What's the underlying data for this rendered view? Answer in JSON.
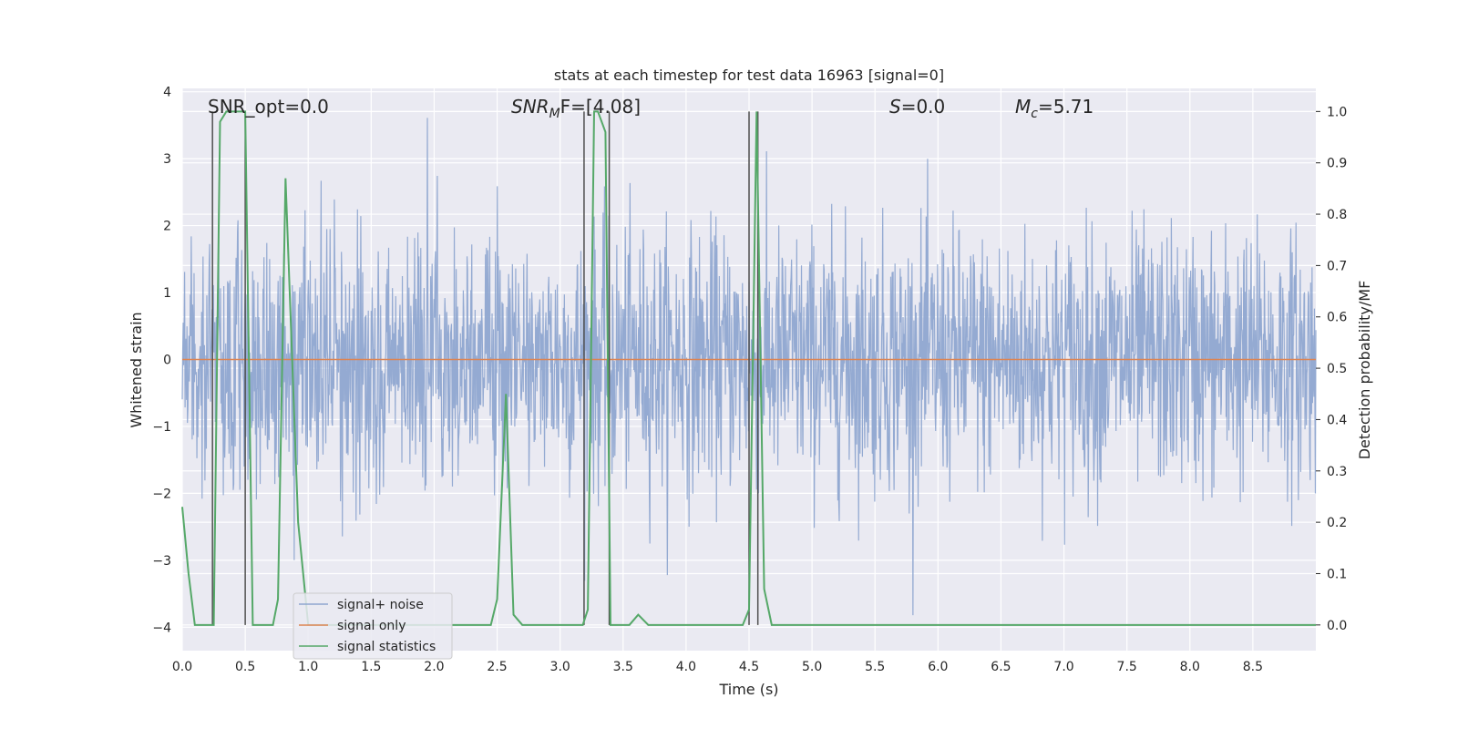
{
  "chart_data": {
    "type": "line",
    "title": "stats at each timestep for test data 16963 [signal=0]",
    "xlabel": "Time (s)",
    "ylabel": "Whitened strain",
    "ylabel_right": "Detection probability/MF",
    "xlim": [
      0,
      9.0
    ],
    "ylim": [
      -4.35,
      4.05
    ],
    "ylim_right": [
      -0.05,
      1.045
    ],
    "x_ticks": [
      "0.0",
      "0.5",
      "1.0",
      "1.5",
      "2.0",
      "2.5",
      "3.0",
      "3.5",
      "4.0",
      "4.5",
      "5.0",
      "5.5",
      "6.0",
      "6.5",
      "7.0",
      "7.5",
      "8.0",
      "8.5"
    ],
    "y_ticks": [
      "−4",
      "−3",
      "−2",
      "−1",
      "0",
      "1",
      "2",
      "3",
      "4"
    ],
    "y_ticks_right": [
      "0.0",
      "0.1",
      "0.2",
      "0.3",
      "0.4",
      "0.5",
      "0.6",
      "0.7",
      "0.8",
      "0.9",
      "1.0"
    ],
    "grid": true,
    "legend_position": "lower-left",
    "annotations": {
      "snr_opt": "SNR_opt=0.0",
      "snr_mf_main": "SNR",
      "snr_mf_sub": "M",
      "snr_mf_tail": "F=[4.08]",
      "s_main": "S",
      "s_tail": "=0.0",
      "mc_main": "M",
      "mc_sub": "c",
      "mc_tail": "=5.71"
    },
    "series": [
      {
        "name": "signal+ noise",
        "color": "#8fa6d0",
        "kind": "noise",
        "typical_range": [
          -1.7,
          1.7
        ],
        "extreme_range": [
          -4.0,
          3.7
        ]
      },
      {
        "name": "signal only",
        "color": "#dd8452",
        "x": [
          0,
          9.0
        ],
        "y": [
          0,
          0
        ]
      },
      {
        "name": "signal statistics",
        "color": "#55a868",
        "axis": "right",
        "x": [
          0.0,
          0.05,
          0.1,
          0.25,
          0.3,
          0.35,
          0.42,
          0.5,
          0.56,
          0.62,
          0.72,
          0.76,
          0.82,
          0.92,
          1.0,
          2.45,
          2.5,
          2.57,
          2.63,
          2.7,
          3.18,
          3.22,
          3.27,
          3.3,
          3.36,
          3.4,
          3.55,
          3.62,
          3.7,
          3.78,
          4.45,
          4.5,
          4.56,
          4.62,
          4.68,
          9.0
        ],
        "y": [
          0.23,
          0.1,
          0.0,
          0.0,
          0.98,
          1.0,
          1.0,
          1.0,
          0.0,
          0.0,
          0.0,
          0.05,
          0.87,
          0.2,
          0.0,
          0.0,
          0.05,
          0.45,
          0.02,
          0.0,
          0.0,
          0.03,
          1.0,
          1.0,
          0.96,
          0.0,
          0.0,
          0.02,
          0.0,
          0.0,
          0.0,
          0.03,
          1.0,
          0.07,
          0.0,
          0.0
        ]
      },
      {
        "name": "markers",
        "color": "#4f4f4f",
        "kind": "vlines",
        "x": [
          0.24,
          0.5,
          3.19,
          3.39,
          4.5,
          4.57
        ]
      }
    ]
  }
}
